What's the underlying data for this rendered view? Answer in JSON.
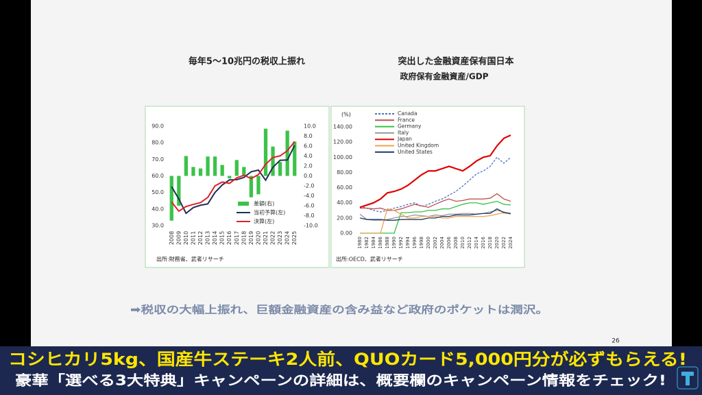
{
  "slide": {
    "conclusion": "➡税収の大幅上振れ、巨額金融資産の含み益など政府のポケットは潤沢。",
    "page_number": "26"
  },
  "banner": {
    "line1": "コシヒカリ5kg、国産牛ステーキ2人前、QUOカード5,000円分が必ずもらえる!",
    "line2": "豪華「選べる3大特典」キャンペーンの詳細は、概要欄のキャンペーン情報をチェック!"
  },
  "chart_data": [
    {
      "type": "combo",
      "title": "毎年5～10兆円の税収上振れ",
      "source": "出所:財務省、武者リサーチ",
      "categories": [
        "2008",
        "2009",
        "2010",
        "2011",
        "2012",
        "2013",
        "2014",
        "2015",
        "2016",
        "2017",
        "2018",
        "2019",
        "2020",
        "2021",
        "2022",
        "2023",
        "2024",
        "2025"
      ],
      "series": [
        {
          "name": "差額(右)",
          "type": "bar",
          "axis": "y2",
          "color": "#3cc24a",
          "values": [
            -9,
            -6,
            4,
            1.8,
            1.5,
            3.9,
            3.9,
            2.2,
            -0.5,
            3.2,
            1.8,
            -4.3,
            -3.7,
            9.5,
            5.9,
            2.8,
            9.1,
            6.9
          ]
        },
        {
          "name": "当初予算(左)",
          "type": "line",
          "color": "#1f3050",
          "values": [
            53.5,
            46.1,
            37.4,
            40.9,
            42.3,
            43.1,
            50,
            54.5,
            57.6,
            57.7,
            59.1,
            62.5,
            63.5,
            57.4,
            65.2,
            69.4,
            69.6,
            78.4
          ]
        },
        {
          "name": "決算(左)",
          "type": "line",
          "color": "#e0202a",
          "values": [
            44.3,
            38.7,
            41.5,
            42.8,
            43.9,
            47,
            54,
            56.3,
            55.5,
            58.8,
            60.4,
            58.4,
            60.8,
            67,
            71.1,
            72.1,
            75.2,
            80.7
          ]
        }
      ],
      "ylim": [
        30,
        90
      ],
      "yticks": [
        {
          "value": 30,
          "label": "30.0"
        },
        {
          "value": 40,
          "label": "40.0"
        },
        {
          "value": 50,
          "label": "50.0"
        },
        {
          "value": 60,
          "label": "60.0"
        },
        {
          "value": 70,
          "label": "70.0"
        },
        {
          "value": 80,
          "label": "80.0"
        },
        {
          "value": 90,
          "label": "90.0"
        }
      ],
      "y2lim": [
        -10,
        10
      ],
      "y2ticks": [
        {
          "value": -10,
          "label": "-10.0"
        },
        {
          "value": -8,
          "label": "-8.0"
        },
        {
          "value": -6,
          "label": "-6.0"
        },
        {
          "value": -4,
          "label": "-4.0"
        },
        {
          "value": -2,
          "label": "-2.0"
        },
        {
          "value": 0,
          "label": "0.0"
        },
        {
          "value": 2,
          "label": "2.0"
        },
        {
          "value": 4,
          "label": "4.0"
        },
        {
          "value": 6,
          "label": "6.0"
        },
        {
          "value": 8,
          "label": "8.0"
        },
        {
          "value": 10,
          "label": "10.0"
        }
      ],
      "grid": false
    },
    {
      "type": "line",
      "title": "突出した金融資産保有国日本",
      "subtitle": "政府保有金融資産/GDP",
      "y_label": "(%)",
      "source": "出所:OECD、武者リサーチ",
      "x": [
        1980,
        1982,
        1984,
        1986,
        1988,
        1990,
        1992,
        1994,
        1996,
        1998,
        2000,
        2002,
        2004,
        2006,
        2008,
        2010,
        2012,
        2014,
        2016,
        2018,
        2020,
        2022,
        2024
      ],
      "xlim": [
        1979,
        2025
      ],
      "xticks": [
        1980,
        1982,
        1984,
        1986,
        1988,
        1990,
        1992,
        1994,
        1996,
        1998,
        2000,
        2002,
        2004,
        2006,
        2008,
        2010,
        2012,
        2014,
        2016,
        2018,
        2020,
        2022,
        2024
      ],
      "ylim": [
        0,
        140
      ],
      "yticks": [
        {
          "value": 0,
          "label": "0.00"
        },
        {
          "value": 20,
          "label": "20.00"
        },
        {
          "value": 40,
          "label": "40.00"
        },
        {
          "value": 60,
          "label": "60.00"
        },
        {
          "value": 80,
          "label": "80.00"
        },
        {
          "value": 100,
          "label": "100.00"
        },
        {
          "value": 120,
          "label": "120.00"
        },
        {
          "value": 140,
          "label": "140.00"
        }
      ],
      "grid": false,
      "series": [
        {
          "name": "Canada",
          "color": "#4a72c0",
          "dashed": true,
          "values": [
            35,
            33,
            30,
            28,
            30,
            33,
            35,
            38,
            40,
            35,
            38,
            42,
            45,
            50,
            55,
            62,
            70,
            78,
            82,
            88,
            100,
            92,
            100
          ]
        },
        {
          "name": "France",
          "color": "#c0504d",
          "values": [
            33,
            33,
            32,
            33,
            30,
            30,
            32,
            35,
            38,
            36,
            34,
            38,
            42,
            45,
            42,
            43,
            45,
            45,
            45,
            46,
            52,
            45,
            42
          ]
        },
        {
          "name": "Germany",
          "color": "#33c244",
          "values": [
            0,
            0,
            0,
            0,
            0,
            0,
            27,
            27,
            28,
            28,
            30,
            30,
            32,
            32,
            35,
            38,
            40,
            40,
            38,
            40,
            42,
            38,
            37
          ]
        },
        {
          "name": "Italy",
          "color": "#9a9a9a",
          "values": [
            25,
            18,
            17,
            17,
            18,
            20,
            22,
            22,
            24,
            23,
            22,
            24,
            23,
            25,
            25,
            26,
            26,
            25,
            26,
            28,
            30,
            28,
            26
          ]
        },
        {
          "name": "Japan",
          "color": "#e00000",
          "values": [
            34,
            37,
            40,
            45,
            53,
            55,
            58,
            63,
            70,
            77,
            82,
            82,
            85,
            88,
            85,
            82,
            88,
            95,
            100,
            102,
            115,
            125,
            129
          ]
        },
        {
          "name": "United Kingdom",
          "color": "#f0a050",
          "values": [
            0,
            0,
            0,
            0,
            32,
            30,
            25,
            20,
            20,
            22,
            22,
            22,
            20,
            20,
            22,
            22,
            22,
            22,
            22,
            23,
            25,
            27,
            25
          ]
        },
        {
          "name": "United States",
          "color": "#1f3864",
          "values": [
            20,
            18,
            18,
            18,
            17,
            17,
            18,
            18,
            18,
            18,
            20,
            20,
            22,
            22,
            24,
            24,
            24,
            25,
            26,
            26,
            32,
            27,
            26
          ]
        }
      ]
    }
  ]
}
